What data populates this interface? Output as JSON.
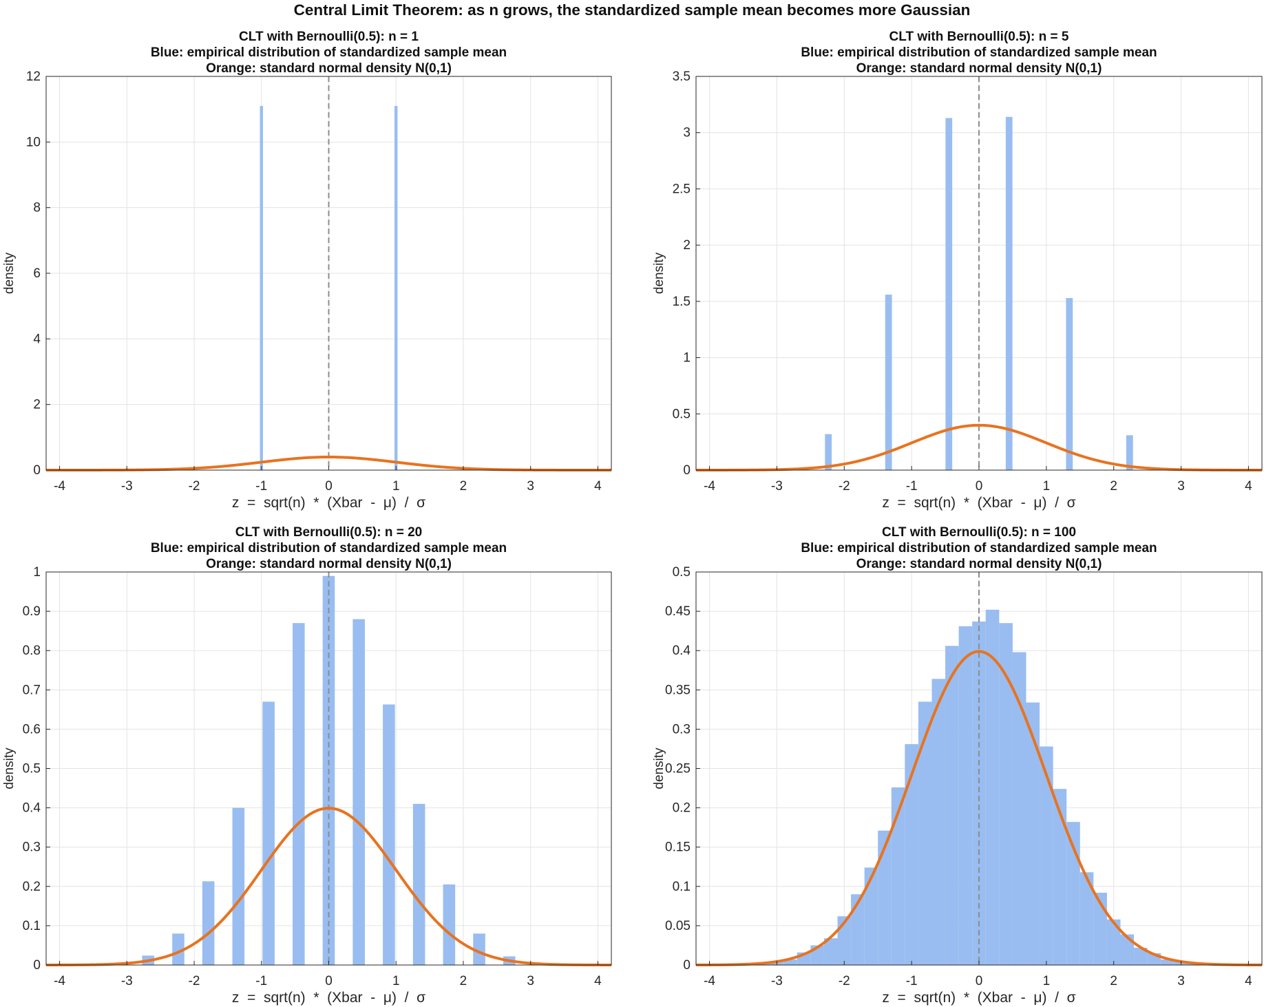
{
  "suptitle": "Central Limit Theorem: as n grows, the standardized sample mean becomes more Gaussian",
  "colors": {
    "histogram": "#99BDF0",
    "normal_curve": "#E8731F",
    "grid": "#E3E3E3",
    "axis": "#262626",
    "zero_line": "#8C8C8C"
  },
  "chart_data": [
    {
      "type": "bar",
      "title_lines": [
        "CLT with Bernoulli(0.5): n = 1",
        "Blue: empirical distribution of standardized sample mean",
        "Orange: standard normal density N(0,1)"
      ],
      "xlabel": "z  =  sqrt(n)  *  (Xbar  -  μ)  /  σ",
      "ylabel": "density",
      "xlim": [
        -4.2,
        4.2
      ],
      "ylim": [
        0,
        12
      ],
      "xticks": [
        -4,
        -3,
        -2,
        -1,
        0,
        1,
        2,
        3,
        4
      ],
      "yticks": [
        0,
        2,
        4,
        6,
        8,
        10,
        12
      ],
      "ytick_labels": [
        "0",
        "2",
        "4",
        "6",
        "8",
        "10",
        "12"
      ],
      "bar_width": 0.045,
      "bars": [
        {
          "x": -1.0,
          "h": 11.1
        },
        {
          "x": 1.0,
          "h": 11.1
        }
      ],
      "series": [
        {
          "name": "empirical histogram"
        },
        {
          "name": "N(0,1) density",
          "function": "standard normal pdf"
        }
      ],
      "reference_line_x": 0
    },
    {
      "type": "bar",
      "title_lines": [
        "CLT with Bernoulli(0.5): n = 5",
        "Blue: empirical distribution of standardized sample mean",
        "Orange: standard normal density N(0,1)"
      ],
      "xlabel": "z  =  sqrt(n)  *  (Xbar  -  μ)  /  σ",
      "ylabel": "density",
      "xlim": [
        -4.2,
        4.2
      ],
      "ylim": [
        0,
        3.5
      ],
      "xticks": [
        -4,
        -3,
        -2,
        -1,
        0,
        1,
        2,
        3,
        4
      ],
      "yticks": [
        0,
        0.5,
        1,
        1.5,
        2,
        2.5,
        3,
        3.5
      ],
      "ytick_labels": [
        "0",
        "0.5",
        "1",
        "1.5",
        "2",
        "2.5",
        "3",
        "3.5"
      ],
      "bar_width": 0.1,
      "bars": [
        {
          "x": -2.236,
          "h": 0.32
        },
        {
          "x": -1.342,
          "h": 1.56
        },
        {
          "x": -0.447,
          "h": 3.13
        },
        {
          "x": 0.447,
          "h": 3.14
        },
        {
          "x": 1.342,
          "h": 1.53
        },
        {
          "x": 2.236,
          "h": 0.31
        }
      ],
      "series": [
        {
          "name": "empirical histogram"
        },
        {
          "name": "N(0,1) density",
          "function": "standard normal pdf"
        }
      ],
      "reference_line_x": 0
    },
    {
      "type": "bar",
      "title_lines": [
        "CLT with Bernoulli(0.5): n = 20",
        "Blue: empirical distribution of standardized sample mean",
        "Orange: standard normal density N(0,1)"
      ],
      "xlabel": "z  =  sqrt(n)  *  (Xbar  -  μ)  /  σ",
      "ylabel": "density",
      "xlim": [
        -4.2,
        4.2
      ],
      "ylim": [
        0,
        1
      ],
      "xticks": [
        -4,
        -3,
        -2,
        -1,
        0,
        1,
        2,
        3,
        4
      ],
      "yticks": [
        0,
        0.1,
        0.2,
        0.3,
        0.4,
        0.5,
        0.6,
        0.7,
        0.8,
        0.9,
        1
      ],
      "ytick_labels": [
        "0",
        "0.1",
        "0.2",
        "0.3",
        "0.4",
        "0.5",
        "0.6",
        "0.7",
        "0.8",
        "0.9",
        "1"
      ],
      "bar_width": 0.18,
      "bars": [
        {
          "x": -2.683,
          "h": 0.024
        },
        {
          "x": -2.236,
          "h": 0.08
        },
        {
          "x": -1.789,
          "h": 0.213
        },
        {
          "x": -1.342,
          "h": 0.4
        },
        {
          "x": -0.894,
          "h": 0.67
        },
        {
          "x": -0.447,
          "h": 0.87
        },
        {
          "x": 0.0,
          "h": 0.99
        },
        {
          "x": 0.447,
          "h": 0.88
        },
        {
          "x": 0.894,
          "h": 0.663
        },
        {
          "x": 1.342,
          "h": 0.41
        },
        {
          "x": 1.789,
          "h": 0.205
        },
        {
          "x": 2.236,
          "h": 0.08
        },
        {
          "x": 2.683,
          "h": 0.022
        }
      ],
      "series": [
        {
          "name": "empirical histogram"
        },
        {
          "name": "N(0,1) density",
          "function": "standard normal pdf"
        }
      ],
      "reference_line_x": 0
    },
    {
      "type": "bar",
      "title_lines": [
        "CLT with Bernoulli(0.5): n = 100",
        "Blue: empirical distribution of standardized sample mean",
        "Orange: standard normal density N(0,1)"
      ],
      "xlabel": "z  =  sqrt(n)  *  (Xbar  -  μ)  /  σ",
      "ylabel": "density",
      "xlim": [
        -4.2,
        4.2
      ],
      "ylim": [
        0,
        0.5
      ],
      "xticks": [
        -4,
        -3,
        -2,
        -1,
        0,
        1,
        2,
        3,
        4
      ],
      "yticks": [
        0,
        0.05,
        0.1,
        0.15,
        0.2,
        0.25,
        0.3,
        0.35,
        0.4,
        0.45,
        0.5
      ],
      "ytick_labels": [
        "0",
        "0.05",
        "0.1",
        "0.15",
        "0.2",
        "0.25",
        "0.3",
        "0.35",
        "0.4",
        "0.45",
        "0.5"
      ],
      "bar_width": 0.2,
      "bars": [
        {
          "x": -3.4,
          "h": 0.001
        },
        {
          "x": -3.2,
          "h": 0.002
        },
        {
          "x": -3.0,
          "h": 0.004
        },
        {
          "x": -2.8,
          "h": 0.007
        },
        {
          "x": -2.6,
          "h": 0.016
        },
        {
          "x": -2.4,
          "h": 0.025
        },
        {
          "x": -2.2,
          "h": 0.034
        },
        {
          "x": -2.0,
          "h": 0.062
        },
        {
          "x": -1.8,
          "h": 0.09
        },
        {
          "x": -1.6,
          "h": 0.124
        },
        {
          "x": -1.4,
          "h": 0.171
        },
        {
          "x": -1.2,
          "h": 0.226
        },
        {
          "x": -1.0,
          "h": 0.281
        },
        {
          "x": -0.8,
          "h": 0.335
        },
        {
          "x": -0.6,
          "h": 0.364
        },
        {
          "x": -0.4,
          "h": 0.406
        },
        {
          "x": -0.2,
          "h": 0.431
        },
        {
          "x": 0.0,
          "h": 0.437
        },
        {
          "x": 0.2,
          "h": 0.452
        },
        {
          "x": 0.4,
          "h": 0.435
        },
        {
          "x": 0.6,
          "h": 0.398
        },
        {
          "x": 0.8,
          "h": 0.334
        },
        {
          "x": 1.0,
          "h": 0.278
        },
        {
          "x": 1.2,
          "h": 0.224
        },
        {
          "x": 1.4,
          "h": 0.182
        },
        {
          "x": 1.6,
          "h": 0.118
        },
        {
          "x": 1.8,
          "h": 0.092
        },
        {
          "x": 2.0,
          "h": 0.058
        },
        {
          "x": 2.2,
          "h": 0.039
        },
        {
          "x": 2.4,
          "h": 0.022
        },
        {
          "x": 2.6,
          "h": 0.015
        },
        {
          "x": 2.8,
          "h": 0.007
        },
        {
          "x": 3.0,
          "h": 0.004
        },
        {
          "x": 3.2,
          "h": 0.002
        }
      ],
      "series": [
        {
          "name": "empirical histogram"
        },
        {
          "name": "N(0,1) density",
          "function": "standard normal pdf"
        }
      ],
      "reference_line_x": 0
    }
  ]
}
